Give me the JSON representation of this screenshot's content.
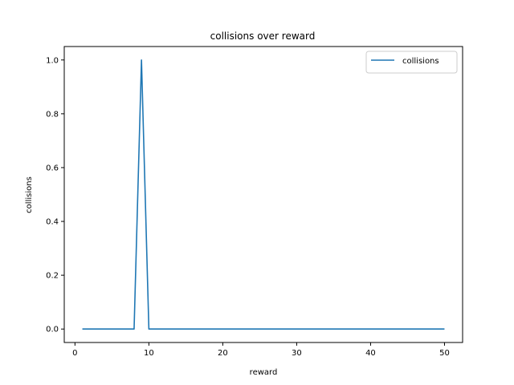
{
  "chart_data": {
    "type": "line",
    "title": "collisions over reward",
    "xlabel": "reward",
    "ylabel": "collisions",
    "xlim": [
      -1.45,
      52.45
    ],
    "ylim": [
      -0.05,
      1.05
    ],
    "xticks": [
      0,
      10,
      20,
      30,
      40,
      50
    ],
    "yticks": [
      0.0,
      0.2,
      0.4,
      0.6,
      0.8,
      1.0
    ],
    "xtick_labels": [
      "0",
      "10",
      "20",
      "30",
      "40",
      "50"
    ],
    "ytick_labels": [
      "0.0",
      "0.2",
      "0.4",
      "0.6",
      "0.8",
      "1.0"
    ],
    "grid": false,
    "legend_position": "top-right",
    "series": [
      {
        "name": "collisions",
        "color": "#1f77b4",
        "x": [
          1,
          2,
          3,
          4,
          5,
          6,
          7,
          8,
          9,
          10,
          11,
          12,
          13,
          14,
          15,
          16,
          17,
          18,
          19,
          20,
          21,
          22,
          23,
          24,
          25,
          26,
          27,
          28,
          29,
          30,
          31,
          32,
          33,
          34,
          35,
          36,
          37,
          38,
          39,
          40,
          41,
          42,
          43,
          44,
          45,
          46,
          47,
          48,
          49,
          50
        ],
        "y": [
          0,
          0,
          0,
          0,
          0,
          0,
          0,
          0,
          1,
          0,
          0,
          0,
          0,
          0,
          0,
          0,
          0,
          0,
          0,
          0,
          0,
          0,
          0,
          0,
          0,
          0,
          0,
          0,
          0,
          0,
          0,
          0,
          0,
          0,
          0,
          0,
          0,
          0,
          0,
          0,
          0,
          0,
          0,
          0,
          0,
          0,
          0,
          0,
          0,
          0
        ]
      }
    ]
  }
}
